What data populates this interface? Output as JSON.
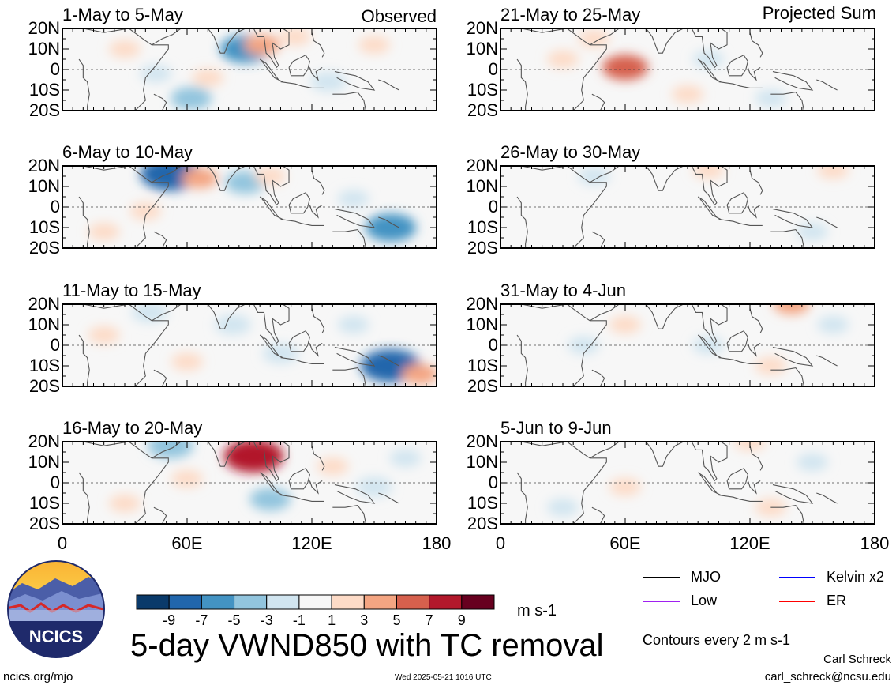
{
  "figure": {
    "title": "5-day VWND850 with TC removal",
    "units": "m s-1",
    "contour_note": "Contours every 2 m s-1",
    "author": "Carl Schreck",
    "email": "carl_schreck@ncsu.edu",
    "site": "ncics.org/mjo",
    "timestamp": "Wed 2025-05-21 1016 UTC",
    "logo_text": "NCICS",
    "column_labels": [
      "Observed",
      "Projected Sum"
    ]
  },
  "legend": {
    "lines": [
      {
        "label": "MJO",
        "color": "#000000"
      },
      {
        "label": "Kelvin x2",
        "color": "#0000ff"
      },
      {
        "label": "Low",
        "color": "#a020f0"
      },
      {
        "label": "ER",
        "color": "#ff0000"
      }
    ]
  },
  "colorbar": {
    "colors": [
      "#0a3a6a",
      "#2166ac",
      "#4393c3",
      "#92c5de",
      "#d1e5f0",
      "#f7f7f7",
      "#fddbc7",
      "#f4a582",
      "#d6604d",
      "#b2182b",
      "#67001f"
    ],
    "tick_labels": [
      "-9",
      "-7",
      "-5",
      "-3",
      "-1",
      "1",
      "3",
      "5",
      "7",
      "9"
    ]
  },
  "chart_data": {
    "type": "heatmap",
    "variable": "VWND850",
    "xlim": [
      0,
      180
    ],
    "ylim": [
      -20,
      20
    ],
    "x_tick_labels": [
      "0",
      "60E",
      "120E",
      "180"
    ],
    "y_tick_labels": [
      "20N",
      "10N",
      "0",
      "10S",
      "20S"
    ],
    "panels": [
      {
        "title": "1-May to 5-May",
        "column": "Observed",
        "features": [
          {
            "lon": 45,
            "lat": -2,
            "value": -2
          },
          {
            "lon": 62,
            "lat": -14,
            "value": -4
          },
          {
            "lon": 88,
            "lat": 10,
            "value": -6
          },
          {
            "lon": 96,
            "lat": 12,
            "value": 3
          },
          {
            "lon": 112,
            "lat": 16,
            "value": 2
          },
          {
            "lon": 128,
            "lat": -6,
            "value": -3
          },
          {
            "lon": 70,
            "lat": -4,
            "value": 2
          },
          {
            "lon": 150,
            "lat": 12,
            "value": 2
          },
          {
            "lon": 30,
            "lat": 10,
            "value": 2
          }
        ]
      },
      {
        "title": "21-May to 25-May",
        "column": "Projected Sum",
        "features": [
          {
            "lon": 60,
            "lat": 1,
            "value": 5
          },
          {
            "lon": 45,
            "lat": 15,
            "value": 2
          },
          {
            "lon": 90,
            "lat": -12,
            "value": 2
          },
          {
            "lon": 130,
            "lat": -14,
            "value": -2
          },
          {
            "lon": 100,
            "lat": 5,
            "value": -2
          },
          {
            "lon": 30,
            "lat": 5,
            "value": 2
          }
        ]
      },
      {
        "title": "6-May to 10-May",
        "column": "Observed",
        "features": [
          {
            "lon": 52,
            "lat": 16,
            "value": -8
          },
          {
            "lon": 88,
            "lat": 12,
            "value": -4
          },
          {
            "lon": 100,
            "lat": 15,
            "value": 2
          },
          {
            "lon": 158,
            "lat": -10,
            "value": -6
          },
          {
            "lon": 40,
            "lat": -2,
            "value": 2
          },
          {
            "lon": 66,
            "lat": 14,
            "value": 3
          },
          {
            "lon": 140,
            "lat": 4,
            "value": -2
          },
          {
            "lon": 20,
            "lat": -12,
            "value": 2
          }
        ]
      },
      {
        "title": "26-May to 30-May",
        "column": "Projected Sum",
        "features": [
          {
            "lon": 45,
            "lat": 15,
            "value": -2
          },
          {
            "lon": 150,
            "lat": -12,
            "value": -2
          },
          {
            "lon": 160,
            "lat": 18,
            "value": 2
          },
          {
            "lon": 100,
            "lat": 18,
            "value": 2
          }
        ]
      },
      {
        "title": "11-May to 15-May",
        "column": "Observed",
        "features": [
          {
            "lon": 158,
            "lat": -10,
            "value": -8
          },
          {
            "lon": 82,
            "lat": 10,
            "value": -3
          },
          {
            "lon": 105,
            "lat": -4,
            "value": -3
          },
          {
            "lon": 20,
            "lat": 5,
            "value": 2
          },
          {
            "lon": 60,
            "lat": -8,
            "value": 2
          },
          {
            "lon": 140,
            "lat": 10,
            "value": -2
          },
          {
            "lon": 172,
            "lat": -14,
            "value": 3
          },
          {
            "lon": 42,
            "lat": 16,
            "value": -3
          }
        ]
      },
      {
        "title": "31-May to 4-Jun",
        "column": "Projected Sum",
        "features": [
          {
            "lon": 60,
            "lat": 10,
            "value": 2
          },
          {
            "lon": 140,
            "lat": 20,
            "value": 3
          },
          {
            "lon": 130,
            "lat": -10,
            "value": 2
          },
          {
            "lon": 40,
            "lat": 0,
            "value": -2
          },
          {
            "lon": 100,
            "lat": 0,
            "value": -2
          },
          {
            "lon": 160,
            "lat": 10,
            "value": -2
          }
        ]
      },
      {
        "title": "16-May to 20-May",
        "column": "Observed",
        "features": [
          {
            "lon": 92,
            "lat": 13,
            "value": 8
          },
          {
            "lon": 100,
            "lat": -8,
            "value": -4
          },
          {
            "lon": 150,
            "lat": -2,
            "value": -3
          },
          {
            "lon": 52,
            "lat": 18,
            "value": -5
          },
          {
            "lon": 30,
            "lat": -10,
            "value": 2
          },
          {
            "lon": 60,
            "lat": 2,
            "value": 2
          },
          {
            "lon": 130,
            "lat": 8,
            "value": 2
          },
          {
            "lon": 165,
            "lat": 12,
            "value": -2
          }
        ]
      },
      {
        "title": "5-Jun to 9-Jun",
        "column": "Projected Sum",
        "features": [
          {
            "lon": 120,
            "lat": 20,
            "value": 2
          },
          {
            "lon": 60,
            "lat": -2,
            "value": 2
          },
          {
            "lon": 130,
            "lat": -12,
            "value": 2
          },
          {
            "lon": 30,
            "lat": -12,
            "value": -2
          },
          {
            "lon": 150,
            "lat": 10,
            "value": -2
          }
        ]
      }
    ]
  }
}
